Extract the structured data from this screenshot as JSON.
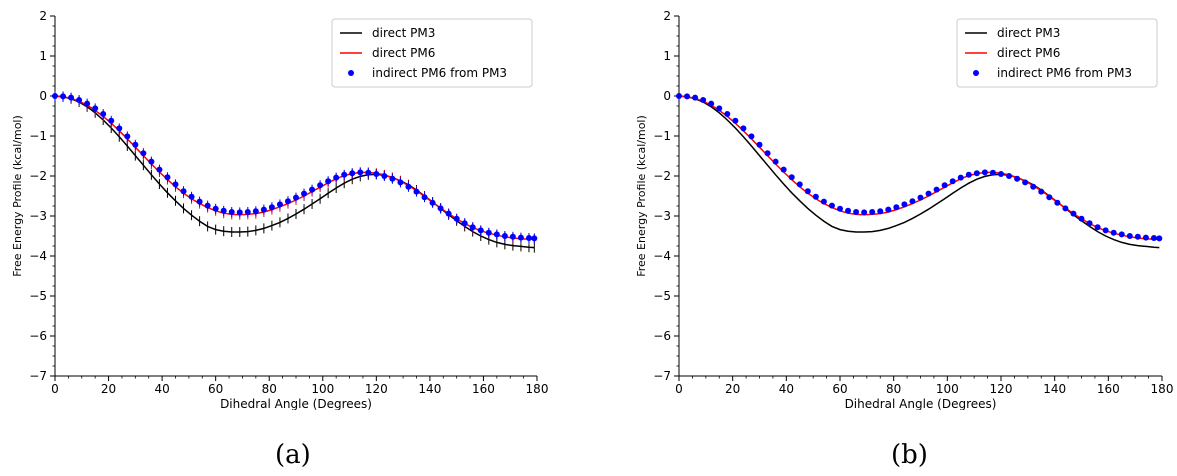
{
  "chart_data": [
    {
      "type": "line",
      "title": "",
      "xlabel": "Dihedral Angle (Degrees)",
      "ylabel": "Free Energy Profile (kcal/mol)",
      "xlim": [
        0,
        180
      ],
      "ylim": [
        -7,
        2
      ],
      "xticks": [
        0,
        20,
        40,
        60,
        80,
        100,
        120,
        140,
        160,
        180
      ],
      "yticks": [
        -7,
        -6,
        -5,
        -4,
        -3,
        -2,
        -1,
        0,
        1,
        2
      ],
      "legend_position": "top-right",
      "grid": false,
      "error_bars": true,
      "x": [
        0,
        3,
        6,
        9,
        12,
        15,
        18,
        21,
        24,
        27,
        30,
        33,
        36,
        39,
        42,
        45,
        48,
        51,
        54,
        57,
        60,
        63,
        66,
        69,
        72,
        75,
        78,
        81,
        84,
        87,
        90,
        93,
        96,
        99,
        102,
        105,
        108,
        111,
        114,
        117,
        120,
        123,
        126,
        129,
        132,
        135,
        138,
        141,
        144,
        147,
        150,
        153,
        156,
        159,
        162,
        165,
        168,
        171,
        174,
        177,
        179
      ],
      "series": [
        {
          "name": "direct PM3",
          "style": "line",
          "color": "#000000",
          "values": [
            0.0,
            -0.02,
            -0.07,
            -0.15,
            -0.27,
            -0.42,
            -0.6,
            -0.8,
            -1.02,
            -1.25,
            -1.49,
            -1.73,
            -1.97,
            -2.2,
            -2.42,
            -2.62,
            -2.81,
            -2.98,
            -3.13,
            -3.26,
            -3.34,
            -3.38,
            -3.4,
            -3.4,
            -3.39,
            -3.36,
            -3.31,
            -3.24,
            -3.16,
            -3.06,
            -2.95,
            -2.83,
            -2.7,
            -2.57,
            -2.43,
            -2.3,
            -2.18,
            -2.08,
            -2.01,
            -1.97,
            -1.96,
            -1.98,
            -2.04,
            -2.12,
            -2.22,
            -2.35,
            -2.5,
            -2.65,
            -2.81,
            -2.97,
            -3.12,
            -3.26,
            -3.39,
            -3.5,
            -3.59,
            -3.66,
            -3.71,
            -3.74,
            -3.76,
            -3.78,
            -3.79
          ]
        },
        {
          "name": "direct PM6",
          "style": "line",
          "color": "#ff0000",
          "values": [
            0.0,
            -0.02,
            -0.06,
            -0.13,
            -0.23,
            -0.36,
            -0.51,
            -0.68,
            -0.87,
            -1.07,
            -1.28,
            -1.49,
            -1.7,
            -1.9,
            -2.09,
            -2.27,
            -2.43,
            -2.57,
            -2.69,
            -2.79,
            -2.87,
            -2.93,
            -2.96,
            -2.97,
            -2.96,
            -2.94,
            -2.9,
            -2.84,
            -2.77,
            -2.69,
            -2.6,
            -2.5,
            -2.39,
            -2.28,
            -2.17,
            -2.07,
            -1.99,
            -1.94,
            -1.91,
            -1.91,
            -1.93,
            -1.97,
            -2.04,
            -2.13,
            -2.24,
            -2.37,
            -2.51,
            -2.66,
            -2.8,
            -2.94,
            -3.07,
            -3.19,
            -3.29,
            -3.37,
            -3.43,
            -3.48,
            -3.52,
            -3.55,
            -3.57,
            -3.58,
            -3.58
          ]
        },
        {
          "name": "indirect PM6 from PM3",
          "style": "scatter",
          "color": "#0000ff",
          "values": [
            0.0,
            -0.01,
            -0.04,
            -0.1,
            -0.19,
            -0.31,
            -0.45,
            -0.62,
            -0.81,
            -1.01,
            -1.22,
            -1.43,
            -1.64,
            -1.84,
            -2.03,
            -2.21,
            -2.38,
            -2.52,
            -2.64,
            -2.74,
            -2.82,
            -2.87,
            -2.9,
            -2.91,
            -2.9,
            -2.88,
            -2.84,
            -2.78,
            -2.71,
            -2.63,
            -2.54,
            -2.44,
            -2.34,
            -2.23,
            -2.13,
            -2.04,
            -1.97,
            -1.93,
            -1.91,
            -1.92,
            -1.95,
            -2.0,
            -2.07,
            -2.16,
            -2.27,
            -2.39,
            -2.53,
            -2.67,
            -2.81,
            -2.94,
            -3.07,
            -3.18,
            -3.28,
            -3.36,
            -3.42,
            -3.46,
            -3.5,
            -3.52,
            -3.54,
            -3.55,
            -3.56
          ]
        }
      ]
    },
    {
      "type": "line",
      "title": "",
      "xlabel": "Dihedral Angle (Degrees)",
      "ylabel": "Free Energy Profile (kcal/mol)",
      "xlim": [
        0,
        180
      ],
      "ylim": [
        -7,
        2
      ],
      "xticks": [
        0,
        20,
        40,
        60,
        80,
        100,
        120,
        140,
        160,
        180
      ],
      "yticks": [
        -7,
        -6,
        -5,
        -4,
        -3,
        -2,
        -1,
        0,
        1,
        2
      ],
      "legend_position": "top-right",
      "grid": false,
      "error_bars": false,
      "x": [
        0,
        3,
        6,
        9,
        12,
        15,
        18,
        21,
        24,
        27,
        30,
        33,
        36,
        39,
        42,
        45,
        48,
        51,
        54,
        57,
        60,
        63,
        66,
        69,
        72,
        75,
        78,
        81,
        84,
        87,
        90,
        93,
        96,
        99,
        102,
        105,
        108,
        111,
        114,
        117,
        120,
        123,
        126,
        129,
        132,
        135,
        138,
        141,
        144,
        147,
        150,
        153,
        156,
        159,
        162,
        165,
        168,
        171,
        174,
        177,
        179
      ],
      "series": [
        {
          "name": "direct PM3",
          "style": "line",
          "color": "#000000",
          "values": [
            0.0,
            -0.02,
            -0.07,
            -0.15,
            -0.27,
            -0.42,
            -0.6,
            -0.8,
            -1.02,
            -1.25,
            -1.49,
            -1.73,
            -1.97,
            -2.2,
            -2.42,
            -2.62,
            -2.81,
            -2.98,
            -3.13,
            -3.26,
            -3.34,
            -3.38,
            -3.4,
            -3.4,
            -3.39,
            -3.36,
            -3.31,
            -3.24,
            -3.16,
            -3.06,
            -2.95,
            -2.83,
            -2.7,
            -2.57,
            -2.43,
            -2.3,
            -2.18,
            -2.08,
            -2.01,
            -1.97,
            -1.96,
            -1.98,
            -2.04,
            -2.12,
            -2.22,
            -2.35,
            -2.5,
            -2.65,
            -2.81,
            -2.97,
            -3.12,
            -3.26,
            -3.39,
            -3.5,
            -3.59,
            -3.66,
            -3.71,
            -3.74,
            -3.76,
            -3.78,
            -3.79
          ]
        },
        {
          "name": "direct PM6",
          "style": "line",
          "color": "#ff0000",
          "values": [
            0.0,
            -0.02,
            -0.06,
            -0.13,
            -0.23,
            -0.36,
            -0.51,
            -0.68,
            -0.87,
            -1.07,
            -1.28,
            -1.49,
            -1.7,
            -1.9,
            -2.09,
            -2.27,
            -2.43,
            -2.57,
            -2.69,
            -2.79,
            -2.87,
            -2.93,
            -2.96,
            -2.97,
            -2.96,
            -2.94,
            -2.9,
            -2.84,
            -2.77,
            -2.69,
            -2.6,
            -2.5,
            -2.39,
            -2.28,
            -2.17,
            -2.07,
            -1.99,
            -1.94,
            -1.91,
            -1.91,
            -1.93,
            -1.97,
            -2.04,
            -2.13,
            -2.24,
            -2.37,
            -2.51,
            -2.66,
            -2.8,
            -2.94,
            -3.07,
            -3.19,
            -3.29,
            -3.37,
            -3.43,
            -3.48,
            -3.52,
            -3.55,
            -3.57,
            -3.58,
            -3.58
          ]
        },
        {
          "name": "indirect PM6 from PM3",
          "style": "scatter",
          "color": "#0000ff",
          "values": [
            0.0,
            -0.01,
            -0.04,
            -0.1,
            -0.19,
            -0.31,
            -0.45,
            -0.62,
            -0.81,
            -1.01,
            -1.22,
            -1.43,
            -1.64,
            -1.84,
            -2.03,
            -2.21,
            -2.38,
            -2.52,
            -2.64,
            -2.74,
            -2.82,
            -2.87,
            -2.9,
            -2.91,
            -2.9,
            -2.88,
            -2.84,
            -2.78,
            -2.71,
            -2.63,
            -2.54,
            -2.44,
            -2.34,
            -2.23,
            -2.13,
            -2.04,
            -1.97,
            -1.93,
            -1.91,
            -1.92,
            -1.95,
            -2.0,
            -2.07,
            -2.16,
            -2.27,
            -2.39,
            -2.53,
            -2.67,
            -2.81,
            -2.94,
            -3.07,
            -3.18,
            -3.28,
            -3.36,
            -3.42,
            -3.46,
            -3.5,
            -3.52,
            -3.54,
            -3.55,
            -3.56
          ]
        }
      ]
    }
  ],
  "captions": [
    "(a)",
    "(b)"
  ]
}
